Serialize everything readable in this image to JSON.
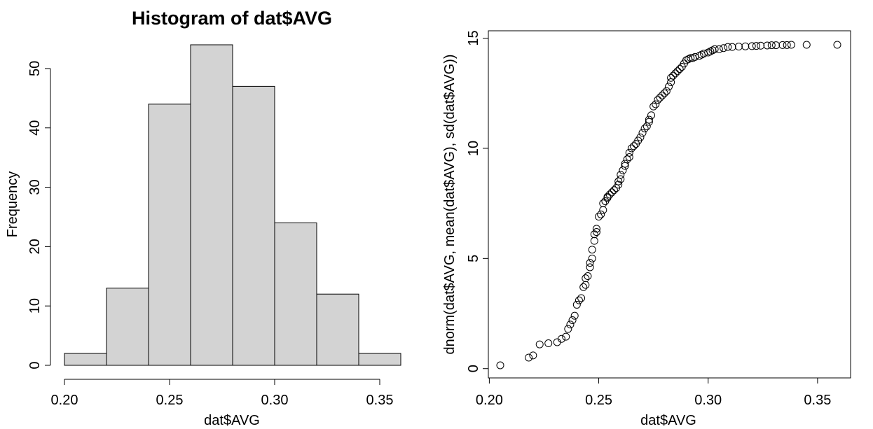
{
  "chart_data": [
    {
      "type": "bar",
      "title": "Histogram of dat$AVG",
      "xlabel": "dat$AVG",
      "ylabel": "Frequency",
      "bin_edges": [
        0.2,
        0.22,
        0.24,
        0.26,
        0.28,
        0.3,
        0.32,
        0.34,
        0.36
      ],
      "values": [
        2,
        13,
        44,
        54,
        47,
        24,
        12,
        2
      ],
      "xticks": [
        "0.20",
        "0.25",
        "0.30",
        "0.35"
      ],
      "yticks": [
        "0",
        "10",
        "20",
        "30",
        "40",
        "50"
      ],
      "xlim": [
        0.2,
        0.36
      ],
      "ylim": [
        0,
        54
      ],
      "bar_fill": "#d3d3d3",
      "grid": false
    },
    {
      "type": "scatter",
      "title": "",
      "xlabel": "dat$AVG",
      "ylabel": "dnorm(dat$AVG, mean(dat$AVG), sd(dat$AVG))",
      "xticks": [
        "0.20",
        "0.25",
        "0.30",
        "0.35"
      ],
      "yticks": [
        "0",
        "5",
        "10",
        "15"
      ],
      "xlim": [
        0.205,
        0.359
      ],
      "ylim": [
        0.15,
        14.7
      ],
      "marker": "open-circle",
      "grid": false,
      "x": [
        0.205,
        0.218,
        0.22,
        0.223,
        0.227,
        0.231,
        0.233,
        0.235,
        0.236,
        0.237,
        0.238,
        0.239,
        0.24,
        0.241,
        0.242,
        0.243,
        0.244,
        0.244,
        0.245,
        0.246,
        0.246,
        0.247,
        0.247,
        0.248,
        0.248,
        0.249,
        0.249,
        0.25,
        0.251,
        0.252,
        0.252,
        0.253,
        0.254,
        0.254,
        0.255,
        0.256,
        0.257,
        0.258,
        0.259,
        0.259,
        0.26,
        0.26,
        0.261,
        0.262,
        0.262,
        0.263,
        0.264,
        0.264,
        0.265,
        0.266,
        0.267,
        0.268,
        0.269,
        0.27,
        0.271,
        0.272,
        0.273,
        0.273,
        0.274,
        0.275,
        0.276,
        0.277,
        0.278,
        0.279,
        0.28,
        0.281,
        0.282,
        0.283,
        0.283,
        0.284,
        0.285,
        0.286,
        0.287,
        0.288,
        0.289,
        0.29,
        0.291,
        0.292,
        0.293,
        0.294,
        0.296,
        0.297,
        0.298,
        0.3,
        0.301,
        0.302,
        0.303,
        0.305,
        0.307,
        0.309,
        0.311,
        0.314,
        0.317,
        0.32,
        0.322,
        0.324,
        0.327,
        0.329,
        0.331,
        0.334,
        0.336,
        0.338,
        0.345,
        0.359
      ],
      "y": [
        0.15,
        0.5,
        0.6,
        1.1,
        1.15,
        1.2,
        1.35,
        1.45,
        1.8,
        2.0,
        2.2,
        2.4,
        2.9,
        3.1,
        3.2,
        3.7,
        3.8,
        4.1,
        4.2,
        4.6,
        4.8,
        5.0,
        5.4,
        5.8,
        6.1,
        6.2,
        6.35,
        6.9,
        7.0,
        7.2,
        7.5,
        7.6,
        7.75,
        7.8,
        7.9,
        8.0,
        8.1,
        8.2,
        8.35,
        8.5,
        8.6,
        8.8,
        9.0,
        9.2,
        9.3,
        9.5,
        9.6,
        9.8,
        10.0,
        10.1,
        10.2,
        10.35,
        10.5,
        10.7,
        10.9,
        11.0,
        11.2,
        11.3,
        11.5,
        11.9,
        12.0,
        12.2,
        12.3,
        12.4,
        12.5,
        12.6,
        12.8,
        13.0,
        13.2,
        13.3,
        13.4,
        13.5,
        13.6,
        13.7,
        13.85,
        14.0,
        14.05,
        14.1,
        14.1,
        14.15,
        14.2,
        14.25,
        14.3,
        14.35,
        14.4,
        14.45,
        14.5,
        14.5,
        14.55,
        14.6,
        14.6,
        14.62,
        14.63,
        14.64,
        14.65,
        14.66,
        14.67,
        14.68,
        14.68,
        14.69,
        14.69,
        14.7,
        14.7,
        14.7
      ]
    }
  ]
}
